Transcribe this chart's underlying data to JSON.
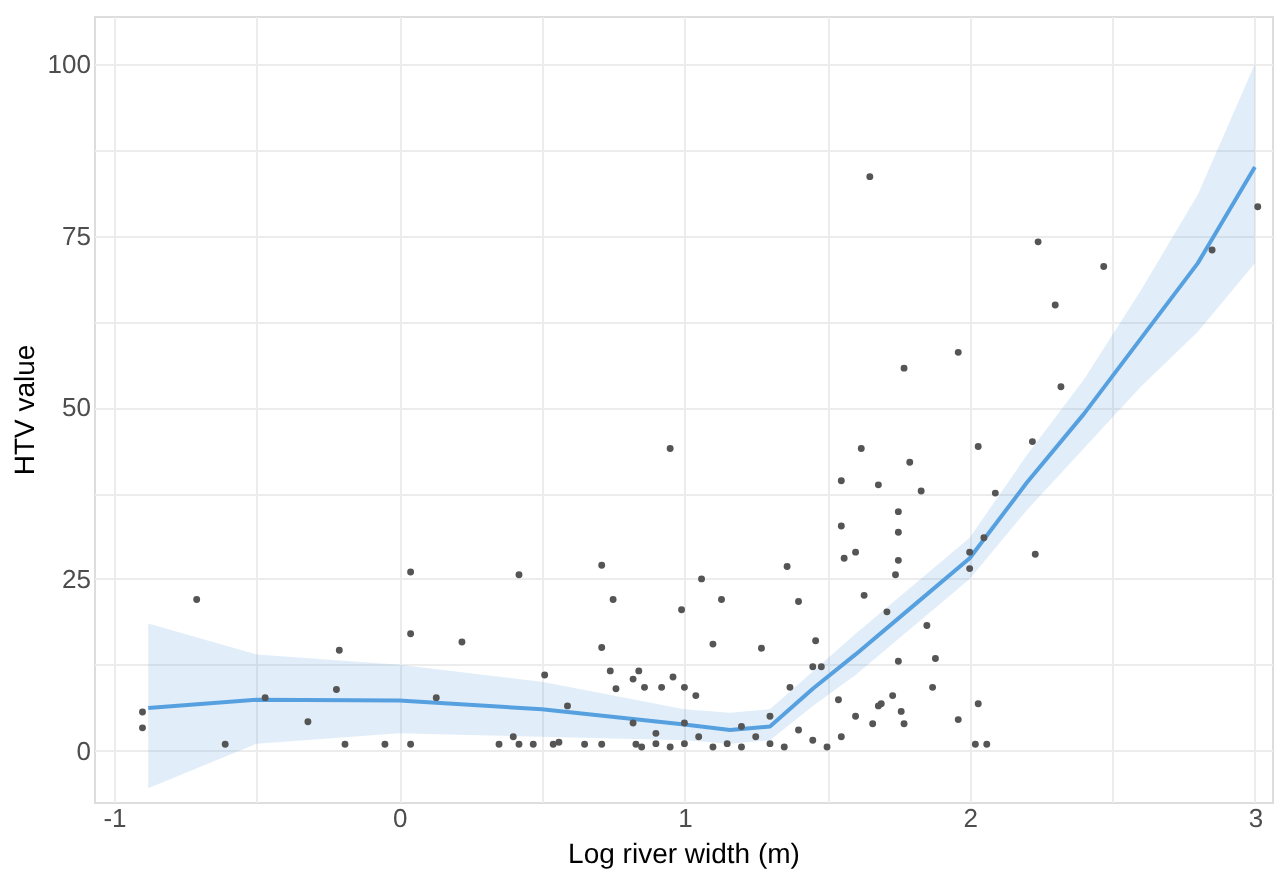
{
  "chart_data": {
    "type": "scatter",
    "xlabel": "Log river width (m)",
    "ylabel": "HTV value",
    "xlim": [
      -1.07,
      3.06
    ],
    "ylim": [
      -7.5,
      107
    ],
    "xticks": [
      -1,
      {
        "value": -0.5,
        "label": null
      },
      0,
      {
        "value": 0.5,
        "label": null
      },
      1,
      {
        "value": 1.5,
        "label": null
      },
      2,
      {
        "value": 2.5,
        "label": null
      },
      3
    ],
    "yticks": [
      0,
      {
        "value": 12.5,
        "label": null
      },
      25,
      {
        "value": 37.5,
        "label": null
      },
      50,
      {
        "value": 62.5,
        "label": null
      },
      75,
      {
        "value": 87.5,
        "label": null
      },
      100
    ],
    "grid": true,
    "series": [
      {
        "color": "#555555",
        "marker": "circle",
        "x": [
          -0.9,
          -0.9,
          -0.71,
          -0.61,
          -0.47,
          -0.32,
          -0.22,
          -0.21,
          -0.19,
          -0.05,
          0.04,
          0.04,
          0.04,
          0.13,
          0.22,
          0.35,
          0.4,
          0.42,
          0.42,
          0.47,
          0.51,
          0.54,
          0.56,
          0.59,
          0.65,
          0.71,
          0.71,
          0.71,
          0.75,
          0.74,
          0.76,
          0.82,
          0.83,
          0.86,
          0.82,
          0.84,
          0.92,
          0.96,
          0.99,
          1.06,
          1.04,
          1.0,
          1.13,
          1.1,
          1.36,
          1.4,
          1.46,
          1.45,
          1.48,
          1.37,
          1.55,
          1.56,
          1.6,
          1.63,
          1.54,
          1.66,
          1.68,
          1.69,
          1.73,
          1.75,
          1.75,
          1.75,
          1.74,
          1.71,
          1.75,
          1.76,
          1.77,
          1.68,
          1.83,
          1.85,
          1.88,
          1.87,
          1.96,
          2.0,
          2.0,
          2.05,
          2.09,
          2.03,
          2.02,
          2.06,
          2.23,
          1.65,
          2.24,
          2.47,
          2.3,
          1.96,
          1.77,
          2.32,
          1.62,
          1.79,
          1.55,
          2.03,
          2.22,
          2.85,
          3.01,
          0.95,
          1.27,
          0.85,
          0.9,
          0.95,
          1.0,
          1.05,
          1.1,
          1.15,
          1.2,
          1.25,
          1.3,
          1.35,
          1.4,
          1.45,
          1.5,
          1.55,
          1.6,
          0.9,
          1.2,
          1.0,
          1.3
        ],
        "values": [
          5.6,
          3.3,
          22,
          0.9,
          7.7,
          4.2,
          8.9,
          14.6,
          0.9,
          0.9,
          17,
          26,
          0.9,
          7.7,
          15.8,
          0.9,
          2,
          25.6,
          0.9,
          0.9,
          11,
          0.9,
          1.2,
          6.5,
          0.9,
          0.9,
          27,
          15,
          22,
          11.6,
          9,
          4,
          0.9,
          9.2,
          10.4,
          11.6,
          9.2,
          10.7,
          20.5,
          25,
          8,
          9.2,
          22,
          15.5,
          26.8,
          21.7,
          16,
          12.2,
          12.2,
          9.2,
          32.7,
          28,
          28.9,
          22.6,
          7.4,
          3.9,
          6.5,
          6.8,
          8,
          34.8,
          31.8,
          27.7,
          25.6,
          20.2,
          13,
          5.7,
          3.9,
          38.7,
          37.8,
          18.2,
          13.4,
          9.2,
          4.5,
          26.5,
          28.9,
          31,
          37.5,
          6.8,
          0.9,
          0.9,
          28.6,
          83.6,
          74.1,
          70.5,
          64.9,
          58,
          55.7,
          53,
          44,
          42,
          39.3,
          44.3,
          45,
          72.9,
          79.2,
          44,
          14.9,
          0.5,
          1,
          0.5,
          1,
          2,
          0.5,
          1,
          0.5,
          2,
          1,
          0.5,
          3,
          1.5,
          0.5,
          2,
          5,
          2.5,
          3.5,
          4,
          5
        ]
      },
      {
        "type": "line",
        "color": "#56a0e0",
        "line_style": "solid",
        "marker": "none",
        "x": [
          -0.88,
          -0.5,
          0,
          0.5,
          1,
          1.16,
          1.3,
          1.45,
          1.6,
          1.8,
          2.0,
          2.2,
          2.4,
          2.6,
          2.8,
          3.0
        ],
        "values": [
          6.2,
          7.4,
          7.3,
          6,
          3.8,
          3,
          3.5,
          9,
          14,
          21,
          28,
          39,
          49,
          60,
          71,
          85
        ],
        "lower": [
          -5.5,
          1,
          2.5,
          2,
          1.5,
          1,
          1.5,
          6.5,
          11,
          18,
          25,
          35,
          44,
          53,
          61,
          71
        ],
        "upper": [
          18.5,
          14,
          12.5,
          10,
          6,
          5.5,
          6,
          11.5,
          17,
          24,
          31,
          43,
          54,
          67,
          81,
          100
        ]
      }
    ]
  }
}
